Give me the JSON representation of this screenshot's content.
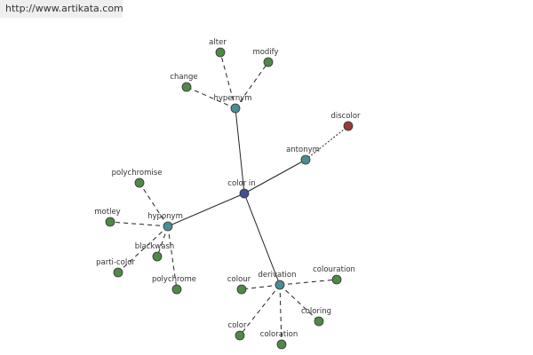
{
  "header": {
    "url": "http://www.artikata.com"
  },
  "nodes": [
    {
      "label": "color in"
    },
    {
      "label": "hypernym"
    },
    {
      "label": "antonym"
    },
    {
      "label": "hyponym"
    },
    {
      "label": "derivation"
    },
    {
      "label": "alter"
    },
    {
      "label": "modify"
    },
    {
      "label": "change"
    },
    {
      "label": "discolor"
    },
    {
      "label": "polychromise"
    },
    {
      "label": "motley"
    },
    {
      "label": "blackwash"
    },
    {
      "label": "parti-color"
    },
    {
      "label": "polychrome"
    },
    {
      "label": "colour"
    },
    {
      "label": "colouration"
    },
    {
      "label": "coloring"
    },
    {
      "label": "color"
    },
    {
      "label": "coloration"
    }
  ]
}
